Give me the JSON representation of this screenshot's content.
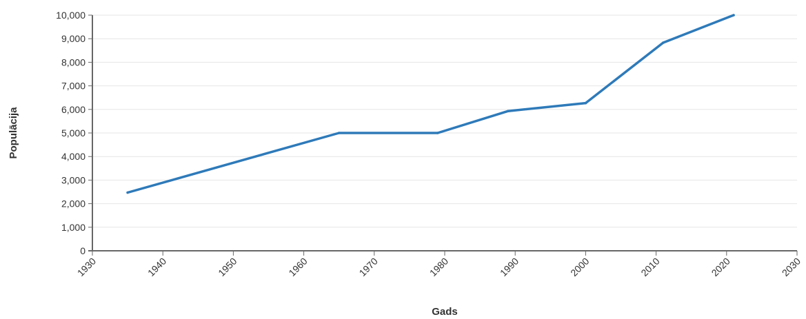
{
  "chart_data": {
    "type": "line",
    "title": "",
    "xlabel": "Gads",
    "ylabel": "Populācija",
    "xlim": [
      1930,
      2030
    ],
    "ylim": [
      0,
      10000
    ],
    "x_ticks": [
      1930,
      1940,
      1950,
      1960,
      1970,
      1980,
      1990,
      2000,
      2010,
      2020,
      2030
    ],
    "y_ticks": [
      0,
      1000,
      2000,
      3000,
      4000,
      5000,
      6000,
      7000,
      8000,
      9000,
      10000
    ],
    "x_tick_labels": [
      "1930",
      "1940",
      "1950",
      "1960",
      "1970",
      "1980",
      "1990",
      "2000",
      "2010",
      "2020",
      "2030"
    ],
    "y_tick_labels": [
      "0",
      "1,000",
      "2,000",
      "3,000",
      "4,000",
      "5,000",
      "6,000",
      "7,000",
      "8,000",
      "9,000",
      "10,000"
    ],
    "grid": true,
    "legend": "none",
    "series": [
      {
        "color": "#2e7ab9",
        "x": [
          1935,
          1965,
          1979,
          1989,
          2000,
          2011,
          2021
        ],
        "y": [
          2470,
          5000,
          5000,
          5930,
          6270,
          8830,
          10000
        ]
      }
    ]
  },
  "colors": {
    "axis": "#666666",
    "grid": "#e6e6e6",
    "text": "#333333"
  }
}
